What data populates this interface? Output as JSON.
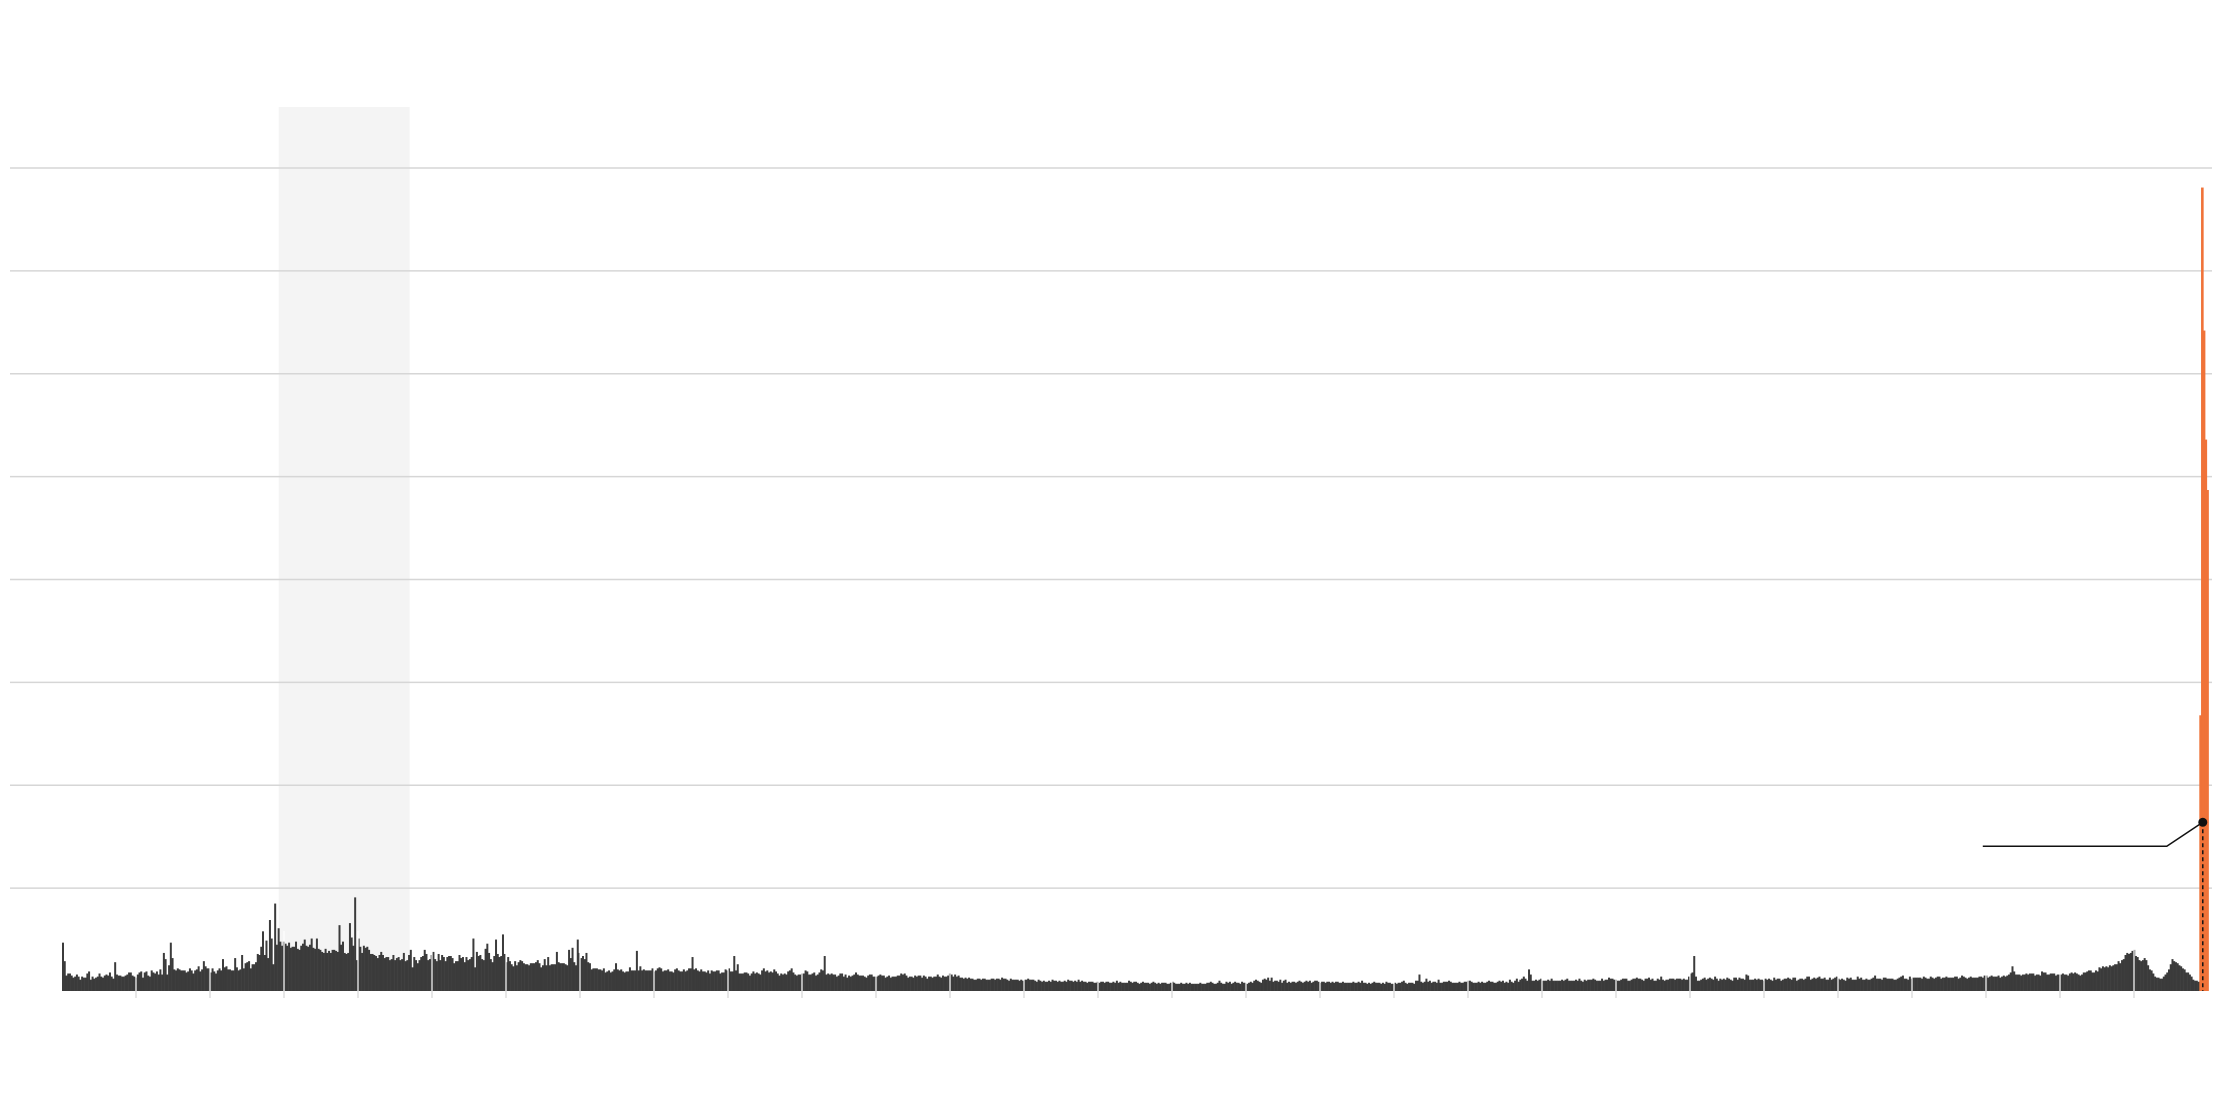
{
  "chart_data": {
    "type": "bar",
    "title": "",
    "xlabel": "",
    "ylabel": "",
    "y_ticks": [
      0,
      100,
      200,
      300,
      400,
      500,
      600,
      700,
      800
    ],
    "ylim": [
      0,
      800
    ],
    "grid": true,
    "legend": "none",
    "colors": {
      "bars": "#3b3b3b",
      "highlight_bars": "#f07339",
      "shaded_band": "#f4f4f4",
      "gridline": "#d6d6d6",
      "annotation": "#111111"
    },
    "shaded_period_fraction": [
      0.101,
      0.162
    ],
    "annotation": {
      "text": "",
      "value": 164,
      "bar_fraction": 0.9985
    },
    "series": [
      {
        "values": [
          47,
          29,
          15,
          17,
          17,
          15,
          13,
          14,
          16,
          14,
          11,
          14,
          13,
          13,
          17,
          19,
          11,
          14,
          12,
          13,
          14,
          17,
          14,
          13,
          15,
          16,
          15,
          18,
          14,
          12,
          28,
          16,
          15,
          15,
          14,
          14,
          15,
          16,
          18,
          18,
          15,
          14,
          13,
          16,
          18,
          19,
          13,
          18,
          19,
          15,
          14,
          20,
          18,
          17,
          19,
          16,
          21,
          16,
          37,
          31,
          16,
          25,
          47,
          32,
          21,
          20,
          22,
          21,
          20,
          20,
          20,
          18,
          19,
          22,
          20,
          17,
          20,
          21,
          24,
          19,
          21,
          29,
          24,
          22,
          22,
          18,
          22,
          19,
          17,
          20,
          22,
          20,
          31,
          23,
          24,
          21,
          21,
          20,
          20,
          32,
          23,
          20,
          21,
          35,
          22,
          27,
          28,
          29,
          22,
          26,
          26,
          28,
          36,
          35,
          43,
          58,
          35,
          49,
          32,
          69,
          51,
          26,
          85,
          45,
          61,
          48,
          44,
          48,
          46,
          44,
          47,
          42,
          43,
          43,
          48,
          41,
          40,
          44,
          46,
          50,
          44,
          43,
          45,
          51,
          42,
          41,
          51,
          41,
          40,
          38,
          37,
          41,
          37,
          39,
          37,
          40,
          40,
          39,
          38,
          64,
          45,
          48,
          37,
          36,
          37,
          66,
          52,
          44,
          91,
          30,
          51,
          43,
          37,
          44,
          42,
          43,
          40,
          36,
          36,
          35,
          34,
          32,
          35,
          38,
          35,
          32,
          33,
          33,
          30,
          31,
          35,
          30,
          32,
          33,
          30,
          31,
          37,
          29,
          30,
          35,
          40,
          23,
          33,
          30,
          27,
          30,
          33,
          34,
          40,
          36,
          30,
          31,
          35,
          38,
          31,
          29,
          36,
          30,
          35,
          33,
          29,
          33,
          34,
          34,
          32,
          27,
          29,
          29,
          35,
          32,
          33,
          28,
          33,
          30,
          31,
          33,
          51,
          23,
          38,
          34,
          35,
          31,
          30,
          41,
          46,
          37,
          31,
          28,
          34,
          50,
          36,
          33,
          34,
          55,
          36,
          28,
          33,
          29,
          26,
          24,
          29,
          25,
          28,
          30,
          29,
          27,
          26,
          26,
          25,
          27,
          27,
          27,
          28,
          30,
          27,
          23,
          25,
          31,
          25,
          33,
          25,
          26,
          26,
          26,
          38,
          28,
          27,
          27,
          27,
          26,
          25,
          40,
          32,
          42,
          28,
          25,
          50,
          37,
          32,
          34,
          31,
          37,
          28,
          27,
          21,
          22,
          22,
          22,
          21,
          21,
          20,
          22,
          18,
          19,
          20,
          18,
          19,
          21,
          27,
          21,
          20,
          21,
          19,
          18,
          19,
          19,
          23,
          20,
          20,
          20,
          39,
          20,
          24,
          20,
          21,
          20,
          20,
          20,
          20,
          22,
          19,
          20,
          22,
          23,
          22,
          19,
          20,
          20,
          21,
          19,
          19,
          18,
          21,
          22,
          20,
          19,
          19,
          21,
          19,
          20,
          22,
          22,
          33,
          21,
          22,
          20,
          19,
          21,
          19,
          19,
          18,
          20,
          17,
          20,
          19,
          19,
          20,
          20,
          17,
          18,
          18,
          21,
          20,
          22,
          19,
          19,
          34,
          20,
          26,
          17,
          17,
          17,
          18,
          18,
          17,
          15,
          17,
          19,
          17,
          18,
          17,
          16,
          20,
          22,
          19,
          20,
          18,
          19,
          18,
          21,
          19,
          17,
          15,
          17,
          16,
          17,
          16,
          19,
          20,
          22,
          18,
          16,
          15,
          16,
          16,
          17,
          17,
          20,
          19,
          16,
          16,
          17,
          18,
          15,
          16,
          18,
          21,
          20,
          34,
          16,
          17,
          16,
          17,
          16,
          16,
          14,
          15,
          17,
          17,
          14,
          16,
          13,
          15,
          14,
          15,
          16,
          18,
          16,
          15,
          15,
          15,
          14,
          13,
          15,
          16,
          16,
          14,
          14,
          14,
          15,
          16,
          15,
          15,
          13,
          14,
          15,
          13,
          14,
          14,
          14,
          15,
          15,
          17,
          16,
          17,
          15,
          13,
          14,
          14,
          13,
          15,
          14,
          15,
          15,
          13,
          15,
          14,
          12,
          14,
          14,
          13,
          14,
          14,
          16,
          14,
          13,
          15,
          14,
          14,
          15,
          17,
          16,
          14,
          16,
          14,
          15,
          13,
          13,
          12,
          13,
          12,
          13,
          12,
          12,
          11,
          11,
          12,
          12,
          11,
          12,
          12,
          11,
          11,
          11,
          12,
          12,
          11,
          12,
          12,
          11,
          13,
          12,
          12,
          11,
          10,
          12,
          11,
          11,
          11,
          11,
          10,
          11,
          10,
          11,
          11,
          12,
          11,
          11,
          11,
          10,
          9,
          11,
          10,
          9,
          10,
          9,
          9,
          10,
          9,
          11,
          10,
          10,
          9,
          10,
          9,
          9,
          10,
          9,
          11,
          10,
          10,
          9,
          10,
          9,
          11,
          9,
          10,
          9,
          9,
          8,
          9,
          9,
          9,
          8,
          8,
          9,
          8,
          9,
          9,
          8,
          9,
          9,
          8,
          8,
          9,
          8,
          10,
          8,
          9,
          8,
          8,
          8,
          8,
          10,
          9,
          8,
          9,
          9,
          8,
          7,
          8,
          9,
          8,
          8,
          8,
          7,
          8,
          9,
          8,
          7,
          8,
          7,
          8,
          8,
          8,
          7,
          7,
          8,
          9,
          8,
          7,
          7,
          7,
          8,
          7,
          7,
          8,
          7,
          8,
          7,
          7,
          7,
          7,
          7,
          8,
          7,
          7,
          7,
          8,
          8,
          9,
          8,
          7,
          7,
          8,
          10,
          8,
          7,
          7,
          9,
          8,
          9,
          7,
          8,
          9,
          8,
          8,
          7,
          9,
          8,
          8,
          7,
          8,
          9,
          8,
          10,
          11,
          10,
          9,
          8,
          11,
          12,
          11,
          13,
          10,
          13,
          9,
          10,
          10,
          9,
          11,
          8,
          10,
          11,
          8,
          9,
          8,
          9,
          9,
          8,
          9,
          10,
          9,
          8,
          9,
          10,
          9,
          10,
          8,
          9,
          10,
          10,
          9,
          8,
          9,
          9,
          8,
          9,
          9,
          8,
          9,
          8,
          9,
          9,
          8,
          8,
          9,
          8,
          8,
          8,
          8,
          8,
          9,
          8,
          8,
          9,
          8,
          10,
          8,
          8,
          7,
          8,
          7,
          8,
          9,
          8,
          8,
          8,
          7,
          8,
          7,
          9,
          8,
          8,
          7,
          7,
          8,
          7,
          8,
          8,
          9,
          10,
          8,
          7,
          8,
          8,
          8,
          7,
          10,
          10,
          16,
          9,
          8,
          9,
          12,
          9,
          10,
          8,
          9,
          9,
          8,
          11,
          8,
          8,
          9,
          9,
          9,
          10,
          9,
          8,
          8,
          8,
          8,
          9,
          8,
          8,
          9,
          9,
          10,
          10,
          9,
          8,
          8,
          8,
          9,
          8,
          9,
          8,
          8,
          9,
          10,
          9,
          9,
          8,
          8,
          9,
          10,
          9,
          10,
          8,
          9,
          8,
          11,
          9,
          8,
          10,
          12,
          9,
          11,
          12,
          14,
          12,
          10,
          21,
          16,
          10,
          10,
          11,
          10,
          11,
          12,
          10,
          10,
          10,
          11,
          10,
          12,
          10,
          10,
          10,
          10,
          10,
          11,
          10,
          11,
          12,
          10,
          10,
          10,
          10,
          11,
          10,
          12,
          10,
          9,
          11,
          10,
          11,
          11,
          11,
          12,
          11,
          10,
          10,
          10,
          12,
          10,
          11,
          11,
          13,
          12,
          12,
          11,
          11,
          10,
          10,
          11,
          12,
          12,
          12,
          10,
          10,
          11,
          12,
          12,
          13,
          12,
          12,
          11,
          10,
          12,
          12,
          13,
          11,
          12,
          10,
          10,
          12,
          11,
          14,
          11,
          10,
          11,
          11,
          12,
          12,
          12,
          11,
          12,
          12,
          12,
          11,
          12,
          11,
          11,
          14,
          17,
          18,
          34,
          14,
          10,
          10,
          11,
          12,
          13,
          11,
          12,
          13,
          12,
          11,
          14,
          12,
          10,
          12,
          11,
          12,
          11,
          13,
          12,
          11,
          10,
          13,
          13,
          11,
          13,
          12,
          12,
          11,
          16,
          15,
          11,
          11,
          11,
          12,
          11,
          12,
          11,
          11,
          10,
          12,
          11,
          12,
          11,
          10,
          13,
          11,
          12,
          12,
          10,
          11,
          12,
          12,
          13,
          12,
          11,
          13,
          13,
          10,
          11,
          12,
          12,
          11,
          12,
          14,
          14,
          11,
          12,
          13,
          12,
          13,
          14,
          12,
          12,
          13,
          11,
          11,
          13,
          11,
          12,
          13,
          14,
          12,
          11,
          12,
          11,
          10,
          13,
          12,
          13,
          11,
          11,
          11,
          14,
          12,
          13,
          11,
          11,
          12,
          11,
          11,
          12,
          13,
          15,
          12,
          12,
          12,
          11,
          13,
          13,
          12,
          12,
          12,
          12,
          11,
          11,
          12,
          13,
          14,
          15,
          12,
          12,
          11,
          14,
          12,
          13,
          13,
          13,
          13,
          13,
          12,
          14,
          13,
          12,
          12,
          14,
          13,
          12,
          13,
          14,
          14,
          12,
          13,
          13,
          14,
          13,
          13,
          13,
          13,
          14,
          14,
          12,
          13,
          15,
          14,
          13,
          12,
          13,
          14,
          13,
          13,
          13,
          13,
          14,
          14,
          13,
          15,
          15,
          13,
          14,
          15,
          14,
          14,
          14,
          15,
          13,
          14,
          15,
          14,
          15,
          16,
          18,
          24,
          19,
          16,
          16,
          16,
          15,
          16,
          16,
          17,
          16,
          17,
          17,
          17,
          15,
          16,
          16,
          15,
          19,
          18,
          18,
          16,
          16,
          17,
          17,
          17,
          15,
          16,
          16,
          16,
          17,
          16,
          16,
          15,
          17,
          18,
          17,
          18,
          17,
          16,
          15,
          16,
          18,
          18,
          19,
          20,
          20,
          18,
          18,
          20,
          19,
          23,
          22,
          24,
          23,
          24,
          23,
          25,
          24,
          25,
          26,
          26,
          29,
          27,
          30,
          31,
          35,
          37,
          36,
          37,
          39,
          40,
          34,
          33,
          30,
          29,
          30,
          32,
          30,
          25,
          21,
          20,
          17,
          14,
          13,
          13,
          12,
          12,
          14,
          16,
          18,
          21,
          26,
          31,
          29,
          28,
          27,
          25,
          24,
          22,
          21,
          18,
          18,
          16,
          14,
          11,
          10,
          10,
          9
        ]
      },
      {
        "values": [
          268,
          781,
          642,
          536,
          487
        ]
      }
    ]
  }
}
